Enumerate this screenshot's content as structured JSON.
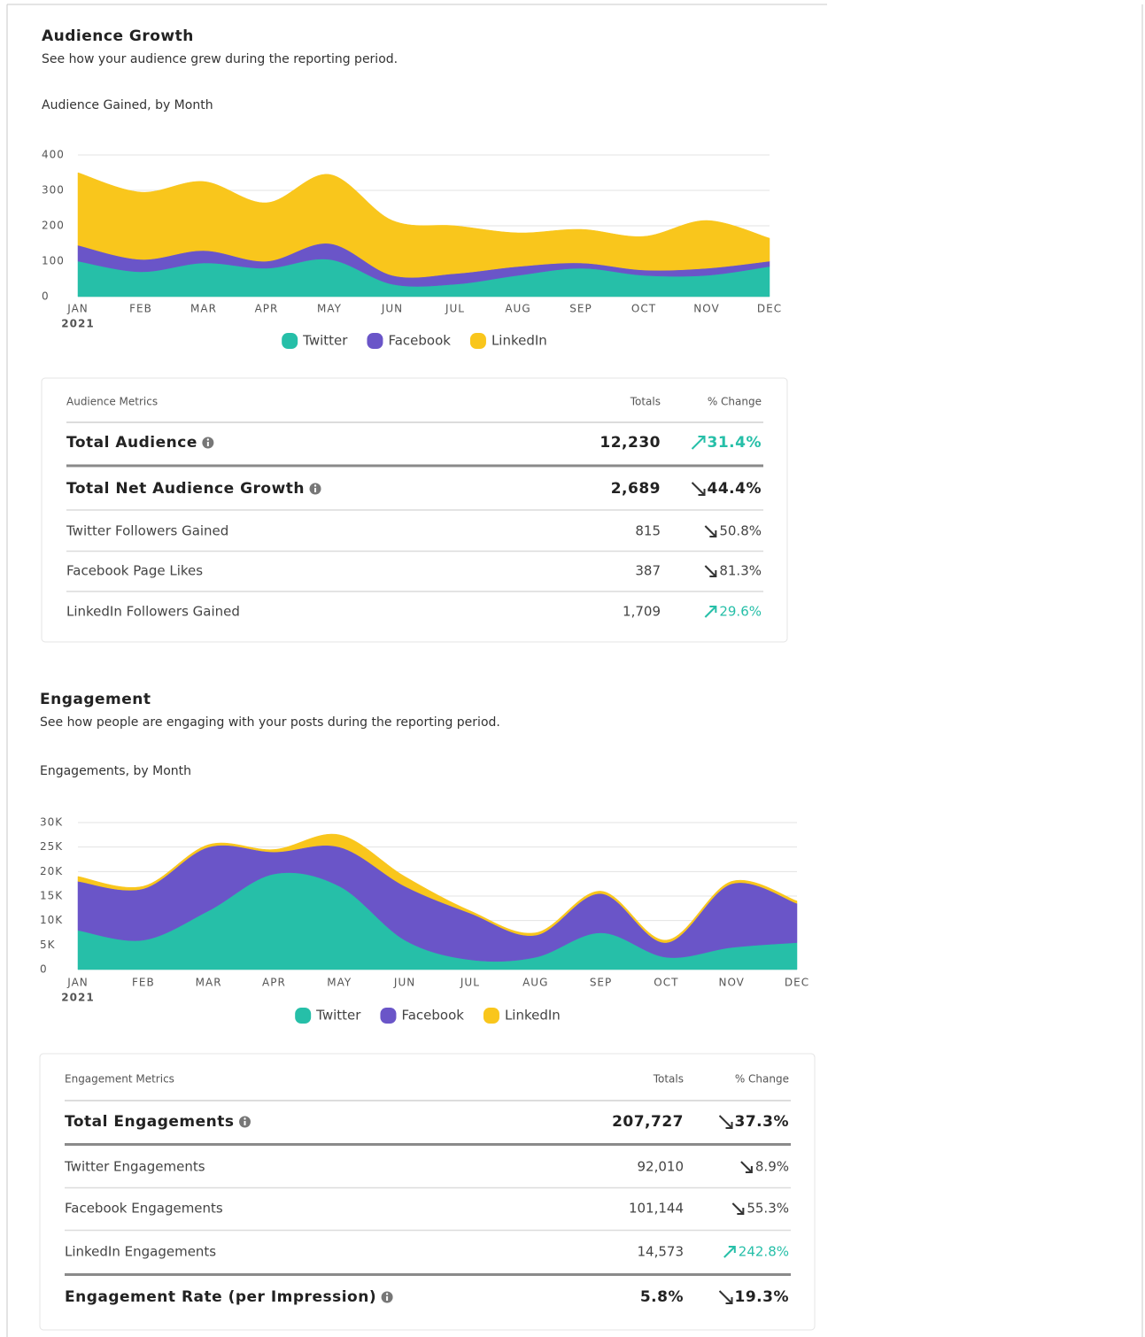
{
  "sections": [
    {
      "title": "Audience Growth",
      "subtitle": "See how your audience grew during the reporting period.",
      "chart_label": "Audience Gained, by Month",
      "table": {
        "header": [
          "Audience Metrics",
          "Totals",
          "% Change"
        ],
        "rows": [
          {
            "label": "Total Audience",
            "info": true,
            "bold": true,
            "total": "12,230",
            "change": "31.4%",
            "trend": "up",
            "divider": "thin"
          },
          {
            "label": "Total Net Audience Growth",
            "info": true,
            "bold": true,
            "total": "2,689",
            "change": "44.4%",
            "trend": "down",
            "divider": "thick"
          },
          {
            "label": "Twitter Followers Gained",
            "info": false,
            "bold": false,
            "total": "815",
            "change": "50.8%",
            "trend": "down",
            "divider": "thin"
          },
          {
            "label": "Facebook Page Likes",
            "info": false,
            "bold": false,
            "total": "387",
            "change": "81.3%",
            "trend": "down",
            "divider": "thin"
          },
          {
            "label": "LinkedIn Followers Gained",
            "info": false,
            "bold": false,
            "total": "1,709",
            "change": "29.6%",
            "trend": "up",
            "divider": "thin"
          }
        ]
      }
    },
    {
      "title": "Engagement",
      "subtitle": "See how people are engaging with your posts during the reporting period.",
      "chart_label": "Engagements, by Month",
      "table": {
        "header": [
          "Engagement Metrics",
          "Totals",
          "% Change"
        ],
        "rows": [
          {
            "label": "Total Engagements",
            "info": true,
            "bold": true,
            "total": "207,727",
            "change": "37.3%",
            "trend": "down",
            "divider": "thin"
          },
          {
            "label": "Twitter Engagements",
            "info": false,
            "bold": false,
            "total": "92,010",
            "change": "8.9%",
            "trend": "down",
            "divider": "thick"
          },
          {
            "label": "Facebook Engagements",
            "info": false,
            "bold": false,
            "total": "101,144",
            "change": "55.3%",
            "trend": "down",
            "divider": "thin"
          },
          {
            "label": "LinkedIn Engagements",
            "info": false,
            "bold": false,
            "total": "14,573",
            "change": "242.8%",
            "trend": "up",
            "divider": "thin"
          },
          {
            "label": "Engagement Rate (per Impression)",
            "info": true,
            "bold": true,
            "total": "5.8%",
            "change": "19.3%",
            "trend": "down",
            "divider": "thick"
          }
        ]
      }
    }
  ],
  "chart_data": [
    {
      "type": "stacked_area",
      "categories": [
        "JAN",
        "FEB",
        "MAR",
        "APR",
        "MAY",
        "JUN",
        "JUL",
        "AUG",
        "SEP",
        "OCT",
        "NOV",
        "DEC"
      ],
      "year_label": "2021",
      "ylim": [
        0,
        400
      ],
      "yticks": [
        0,
        100,
        200,
        300,
        400
      ],
      "grid": true,
      "legend": "bottom",
      "series": [
        {
          "name": "Twitter",
          "color": "#26bfa8",
          "values": [
            100,
            70,
            95,
            80,
            105,
            35,
            35,
            60,
            80,
            60,
            60,
            85
          ]
        },
        {
          "name": "Facebook",
          "color": "#6a55c8",
          "values": [
            45,
            35,
            35,
            20,
            45,
            25,
            30,
            25,
            15,
            15,
            20,
            15
          ]
        },
        {
          "name": "LinkedIn",
          "color": "#f9c61c",
          "values": [
            205,
            190,
            195,
            165,
            195,
            155,
            135,
            95,
            95,
            95,
            135,
            65
          ]
        }
      ]
    },
    {
      "type": "stacked_area",
      "categories": [
        "JAN",
        "FEB",
        "MAR",
        "APR",
        "MAY",
        "JUN",
        "JUL",
        "AUG",
        "SEP",
        "OCT",
        "NOV",
        "DEC"
      ],
      "year_label": "2021",
      "ylim": [
        0,
        30000
      ],
      "yticks": [
        0,
        {
          "value": 5000,
          "label": "5K"
        },
        {
          "value": 10000,
          "label": "10K"
        },
        {
          "value": 15000,
          "label": "15K"
        },
        {
          "value": 20000,
          "label": "20K"
        },
        {
          "value": 25000,
          "label": "25K"
        },
        {
          "value": 30000,
          "label": "30K"
        }
      ],
      "grid": true,
      "legend": "bottom",
      "series": [
        {
          "name": "Twitter",
          "color": "#26bfa8",
          "values": [
            8000,
            6000,
            12000,
            19500,
            17000,
            6000,
            2000,
            2500,
            7500,
            2500,
            4500,
            5500
          ]
        },
        {
          "name": "Facebook",
          "color": "#6a55c8",
          "values": [
            10000,
            10500,
            13000,
            4500,
            8000,
            11000,
            9500,
            4500,
            8000,
            3000,
            13000,
            8000
          ]
        },
        {
          "name": "LinkedIn",
          "color": "#f9c61c",
          "values": [
            1000,
            500,
            500,
            500,
            2500,
            2000,
            500,
            500,
            500,
            500,
            500,
            500
          ]
        }
      ]
    }
  ]
}
